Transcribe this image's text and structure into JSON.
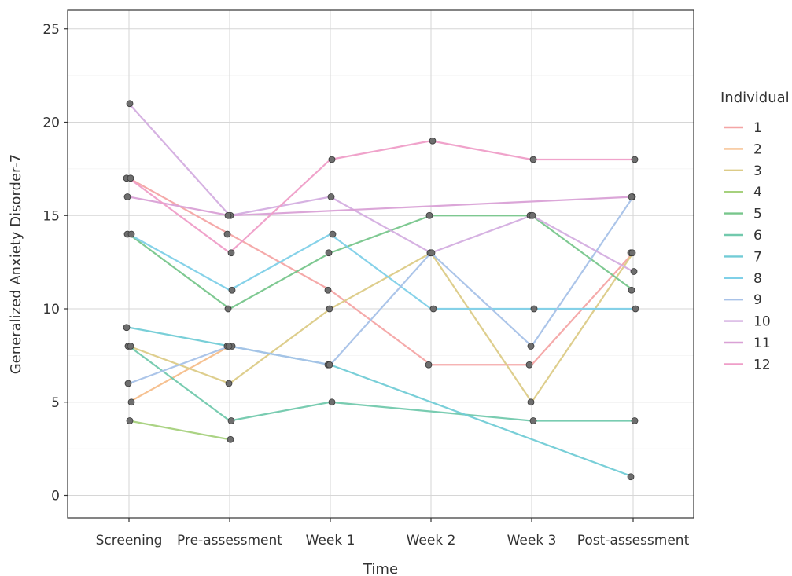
{
  "chart_data": {
    "type": "line",
    "xlabel": "Time",
    "ylabel": "Generalized Anxiety Disorder-7",
    "ylim": [
      -1.2,
      26
    ],
    "yticks": [
      0,
      5,
      10,
      15,
      20,
      25
    ],
    "grid": true,
    "legend_title": "Individual",
    "legend_position": "right",
    "categories": [
      "Screening",
      "Pre-assessment",
      "Week 1",
      "Week 2",
      "Week 3",
      "Post-assessment"
    ],
    "series": [
      {
        "name": "1",
        "color": "#f4a5a5",
        "values": [
          17,
          14,
          11,
          7,
          7,
          13
        ]
      },
      {
        "name": "2",
        "color": "#f6be8b",
        "values": [
          5,
          8,
          null,
          null,
          null,
          null
        ]
      },
      {
        "name": "3",
        "color": "#dccb87",
        "values": [
          8,
          6,
          10,
          13,
          5,
          13
        ]
      },
      {
        "name": "4",
        "color": "#a6d17d",
        "values": [
          4,
          3,
          null,
          null,
          null,
          null
        ]
      },
      {
        "name": "5",
        "color": "#78c68c",
        "values": [
          14,
          10,
          13,
          15,
          15,
          11
        ]
      },
      {
        "name": "6",
        "color": "#72c9ad",
        "values": [
          8,
          4,
          5,
          null,
          4,
          4
        ]
      },
      {
        "name": "7",
        "color": "#72ccd6",
        "values": [
          9,
          8,
          7,
          null,
          null,
          1
        ]
      },
      {
        "name": "8",
        "color": "#7fd0e8",
        "values": [
          14,
          11,
          14,
          10,
          10,
          10
        ]
      },
      {
        "name": "9",
        "color": "#a8c2e8",
        "values": [
          6,
          8,
          7,
          13,
          8,
          16
        ]
      },
      {
        "name": "10",
        "color": "#d4aee0",
        "values": [
          21,
          15,
          16,
          13,
          15,
          12
        ]
      },
      {
        "name": "11",
        "color": "#d9a1d6",
        "values": [
          16,
          15,
          null,
          null,
          null,
          16
        ]
      },
      {
        "name": "12",
        "color": "#ef9ec8",
        "values": [
          17,
          13,
          18,
          19,
          18,
          18
        ]
      }
    ]
  }
}
